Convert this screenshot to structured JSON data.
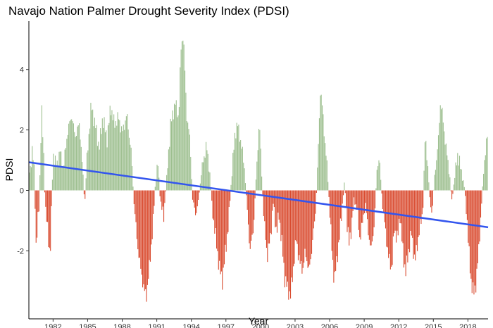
{
  "chart_data": {
    "type": "bar",
    "title": "Navajo Nation Palmer Drought Severity Index (PDSI)",
    "xlabel": "Year",
    "ylabel": "PDSI",
    "x_range": [
      1979.9,
      2019.75
    ],
    "ylim": [
      -4.25,
      5.6
    ],
    "x_ticks": [
      1982,
      1985,
      1988,
      1991,
      1994,
      1997,
      2000,
      2003,
      2006,
      2009,
      2012,
      2015,
      2018
    ],
    "y_ticks": [
      -2,
      0,
      2,
      4
    ],
    "grid": false,
    "legend": "none",
    "colors": {
      "positive": "#9dbf8f",
      "negative": "#d94a2e",
      "trend": "#3355ee"
    },
    "keypoints": [
      [
        1980.0,
        0.6
      ],
      [
        1980.2,
        1.4
      ],
      [
        1980.4,
        0.5
      ],
      [
        1980.5,
        -1.9
      ],
      [
        1980.8,
        -0.5
      ],
      [
        1981.0,
        2.8
      ],
      [
        1981.2,
        1.0
      ],
      [
        1981.3,
        -0.4
      ],
      [
        1981.5,
        -1.2
      ],
      [
        1981.75,
        -2.2
      ],
      [
        1982.0,
        1.2
      ],
      [
        1982.3,
        0.8
      ],
      [
        1982.6,
        1.3
      ],
      [
        1982.9,
        0.7
      ],
      [
        1983.2,
        1.8
      ],
      [
        1983.6,
        2.5
      ],
      [
        1983.9,
        1.8
      ],
      [
        1984.3,
        2.2
      ],
      [
        1984.6,
        0.5
      ],
      [
        1984.75,
        -0.5
      ],
      [
        1984.9,
        0.8
      ],
      [
        1985.3,
        2.8
      ],
      [
        1985.7,
        2.1
      ],
      [
        1986.0,
        1.4
      ],
      [
        1986.3,
        2.4
      ],
      [
        1986.7,
        1.7
      ],
      [
        1987.0,
        2.8
      ],
      [
        1987.3,
        2.2
      ],
      [
        1987.7,
        2.4
      ],
      [
        1988.0,
        1.9
      ],
      [
        1988.4,
        2.5
      ],
      [
        1988.8,
        1.2
      ],
      [
        1989.0,
        -0.3
      ],
      [
        1989.3,
        -1.7
      ],
      [
        1989.6,
        -2.6
      ],
      [
        1989.9,
        -3.3
      ],
      [
        1990.1,
        -3.5
      ],
      [
        1990.4,
        -2.4
      ],
      [
        1990.7,
        -1.0
      ],
      [
        1990.9,
        0.4
      ],
      [
        1991.1,
        0.9
      ],
      [
        1991.3,
        -0.3
      ],
      [
        1991.6,
        -0.9
      ],
      [
        1991.9,
        0.6
      ],
      [
        1992.2,
        2.2
      ],
      [
        1992.6,
        2.9
      ],
      [
        1992.9,
        2.4
      ],
      [
        1993.1,
        4.7
      ],
      [
        1993.3,
        5.2
      ],
      [
        1993.6,
        2.5
      ],
      [
        1993.9,
        1.6
      ],
      [
        1994.1,
        -0.3
      ],
      [
        1994.4,
        -0.8
      ],
      [
        1994.6,
        -0.4
      ],
      [
        1994.9,
        0.7
      ],
      [
        1995.3,
        1.5
      ],
      [
        1995.6,
        0.6
      ],
      [
        1995.8,
        -0.6
      ],
      [
        1996.1,
        -1.5
      ],
      [
        1996.4,
        -2.5
      ],
      [
        1996.7,
        -3.0
      ],
      [
        1996.9,
        -2.2
      ],
      [
        1997.2,
        -1.2
      ],
      [
        1997.5,
        0.5
      ],
      [
        1997.8,
        1.9
      ],
      [
        1998.0,
        2.2
      ],
      [
        1998.3,
        1.6
      ],
      [
        1998.6,
        0.8
      ],
      [
        1998.9,
        -0.9
      ],
      [
        1999.1,
        -2.0
      ],
      [
        1999.4,
        -1.2
      ],
      [
        1999.7,
        1.0
      ],
      [
        1999.9,
        2.3
      ],
      [
        2000.1,
        0.6
      ],
      [
        2000.3,
        -1.0
      ],
      [
        2000.6,
        -2.2
      ],
      [
        2000.9,
        -1.4
      ],
      [
        2001.1,
        -0.4
      ],
      [
        2001.4,
        -1.4
      ],
      [
        2001.6,
        -0.8
      ],
      [
        2001.9,
        -1.9
      ],
      [
        2002.1,
        -2.9
      ],
      [
        2002.4,
        -3.3
      ],
      [
        2002.6,
        -3.5
      ],
      [
        2002.9,
        -2.4
      ],
      [
        2003.1,
        -1.6
      ],
      [
        2003.4,
        -2.4
      ],
      [
        2003.7,
        -2.6
      ],
      [
        2003.9,
        -2.0
      ],
      [
        2004.2,
        -2.7
      ],
      [
        2004.5,
        -1.8
      ],
      [
        2004.8,
        -0.6
      ],
      [
        2005.0,
        1.2
      ],
      [
        2005.2,
        3.4
      ],
      [
        2005.4,
        2.6
      ],
      [
        2005.6,
        1.6
      ],
      [
        2005.8,
        0.7
      ],
      [
        2006.0,
        -0.6
      ],
      [
        2006.2,
        -2.0
      ],
      [
        2006.4,
        -3.0
      ],
      [
        2006.6,
        -2.4
      ],
      [
        2006.9,
        -1.4
      ],
      [
        2007.1,
        -0.5
      ],
      [
        2007.3,
        0.3
      ],
      [
        2007.5,
        -1.0
      ],
      [
        2007.7,
        -1.8
      ],
      [
        2007.9,
        -1.2
      ],
      [
        2008.1,
        -0.3
      ],
      [
        2008.4,
        -0.6
      ],
      [
        2008.6,
        -1.6
      ],
      [
        2008.9,
        -1.0
      ],
      [
        2009.1,
        -0.4
      ],
      [
        2009.3,
        -1.2
      ],
      [
        2009.6,
        -2.0
      ],
      [
        2009.9,
        -1.0
      ],
      [
        2010.1,
        0.7
      ],
      [
        2010.3,
        1.1
      ],
      [
        2010.6,
        -0.5
      ],
      [
        2010.9,
        -1.5
      ],
      [
        2011.1,
        -2.2
      ],
      [
        2011.4,
        -2.6
      ],
      [
        2011.6,
        -1.3
      ],
      [
        2011.9,
        -1.6
      ],
      [
        2012.1,
        -0.8
      ],
      [
        2012.4,
        -2.2
      ],
      [
        2012.6,
        -2.7
      ],
      [
        2012.9,
        -1.9
      ],
      [
        2013.1,
        -1.4
      ],
      [
        2013.4,
        -2.4
      ],
      [
        2013.6,
        -1.8
      ],
      [
        2013.9,
        -1.1
      ],
      [
        2014.1,
        -0.6
      ],
      [
        2014.3,
        1.9
      ],
      [
        2014.5,
        0.9
      ],
      [
        2014.7,
        -0.3
      ],
      [
        2014.9,
        -0.8
      ],
      [
        2015.1,
        0.5
      ],
      [
        2015.4,
        1.4
      ],
      [
        2015.6,
        2.9
      ],
      [
        2015.8,
        2.5
      ],
      [
        2016.1,
        1.4
      ],
      [
        2016.4,
        0.6
      ],
      [
        2016.6,
        -0.4
      ],
      [
        2016.9,
        0.6
      ],
      [
        2017.1,
        1.2
      ],
      [
        2017.4,
        0.7
      ],
      [
        2017.7,
        0.1
      ],
      [
        2017.9,
        -0.8
      ],
      [
        2018.1,
        -2.1
      ],
      [
        2018.3,
        -3.1
      ],
      [
        2018.5,
        -3.4
      ],
      [
        2018.7,
        -3.1
      ],
      [
        2018.9,
        -2.2
      ],
      [
        2019.1,
        -1.0
      ],
      [
        2019.4,
        0.9
      ],
      [
        2019.7,
        1.8
      ]
    ],
    "trend_line": {
      "x": [
        1979.9,
        2019.75
      ],
      "y": [
        0.93,
        -1.22
      ]
    }
  }
}
